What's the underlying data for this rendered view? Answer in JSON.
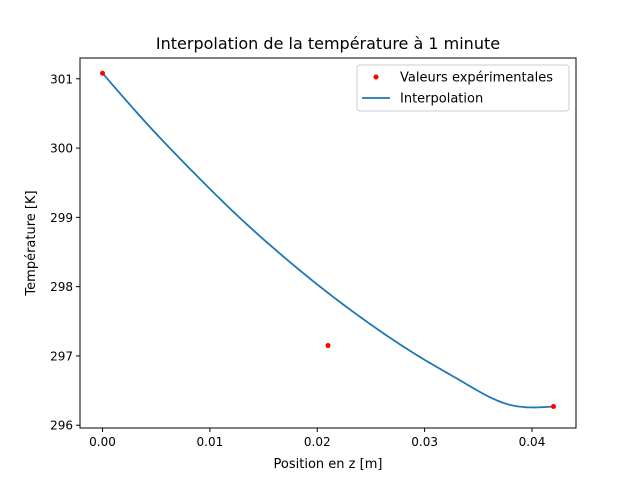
{
  "chart_data": {
    "type": "line",
    "title": "Interpolation de la température à 1 minute",
    "xlabel": "Position en z [m]",
    "ylabel": "Température [K]",
    "xlim": [
      -0.0021,
      0.0441
    ],
    "ylim": [
      295.96,
      301.3
    ],
    "xticks": [
      0.0,
      0.01,
      0.02,
      0.03,
      0.04
    ],
    "xtick_labels": [
      "0.00",
      "0.01",
      "0.02",
      "0.03",
      "0.04"
    ],
    "yticks": [
      296,
      297,
      298,
      299,
      300,
      301
    ],
    "ytick_labels": [
      "296",
      "297",
      "298",
      "299",
      "300",
      "301"
    ],
    "grid": false,
    "legend_position": "top-right",
    "series": [
      {
        "name": "Valeurs expérimentales",
        "kind": "scatter",
        "color": "#ff0000",
        "x": [
          0.0,
          0.021,
          0.042
        ],
        "y": [
          301.08,
          297.15,
          296.27
        ]
      },
      {
        "name": "Interpolation",
        "kind": "line",
        "color": "#1f77b4",
        "x": [
          0.0,
          0.0042,
          0.0084,
          0.0126,
          0.0168,
          0.021,
          0.0252,
          0.0294,
          0.0336,
          0.0378,
          0.042
        ],
        "y": [
          301.08,
          300.34,
          299.66,
          299.02,
          298.44,
          297.91,
          297.43,
          297.0,
          296.62,
          296.3,
          296.27
        ]
      }
    ]
  }
}
